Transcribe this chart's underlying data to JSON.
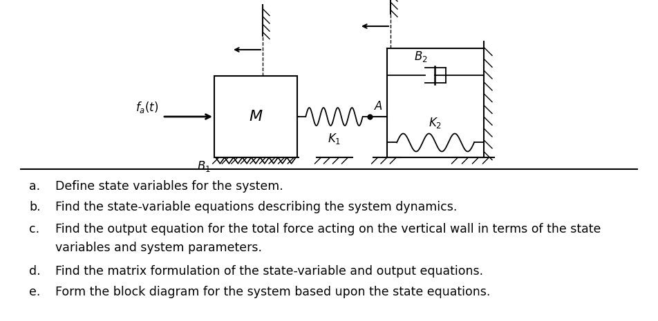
{
  "bg_color": "#ffffff",
  "questions": [
    {
      "label": "a.",
      "text": "Define state variables for the system."
    },
    {
      "label": "b.",
      "text": "Find the state-variable equations describing the system dynamics."
    },
    {
      "label": "c.",
      "text": "Find the output equation for the total force acting on the vertical wall in terms of the state"
    },
    {
      "label": "",
      "text": "variables and system parameters."
    },
    {
      "label": "d.",
      "text": "Find the matrix formulation of the state-variable and output equations."
    },
    {
      "label": "e.",
      "text": "Form the block diagram for the system based upon the state equations."
    }
  ],
  "fontsize_q": 12.5
}
